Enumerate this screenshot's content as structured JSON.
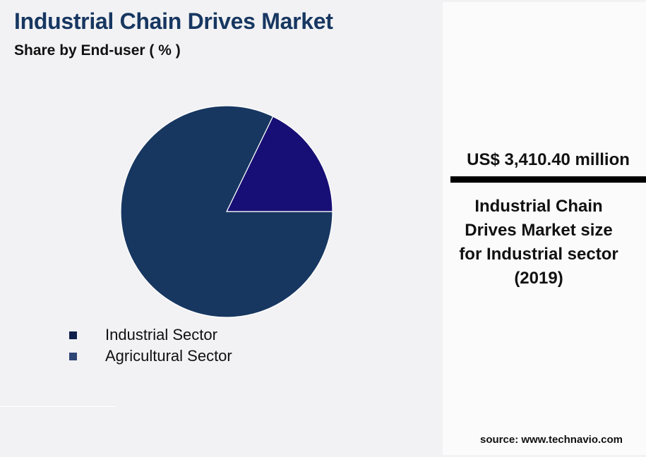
{
  "header": {
    "title": "Industrial Chain Drives Market",
    "subtitle": "Share by End-user ( % )"
  },
  "legend": [
    {
      "label": "Industrial Sector",
      "color": "#0f1f4a"
    },
    {
      "label": "Agricultural Sector",
      "color": "#2e4575"
    }
  ],
  "panel": {
    "value": "US$ 3,410.40 million",
    "caption": "Industrial Chain Drives Market size for Industrial sector (2019)",
    "caption_lines": [
      "Industrial Chain",
      "Drives Market size",
      "for Industrial sector",
      "(2019)"
    ]
  },
  "footer": {
    "source": "source: www.technavio.com"
  },
  "colors": {
    "title": "#173761",
    "industrial_slice": "#173761",
    "agricultural_slice": "#170f75",
    "background": "#f2f2f4",
    "panel_background": "#fbfbfb"
  },
  "chart_data": {
    "type": "pie",
    "title": "Industrial Chain Drives Market",
    "subtitle": "Share by End-user ( % )",
    "categories": [
      "Industrial Sector",
      "Agricultural Sector"
    ],
    "values": [
      82.2,
      17.8
    ],
    "colors": [
      "#173761",
      "#170f75"
    ],
    "legend_position": "bottom-left",
    "data_labels": false
  }
}
